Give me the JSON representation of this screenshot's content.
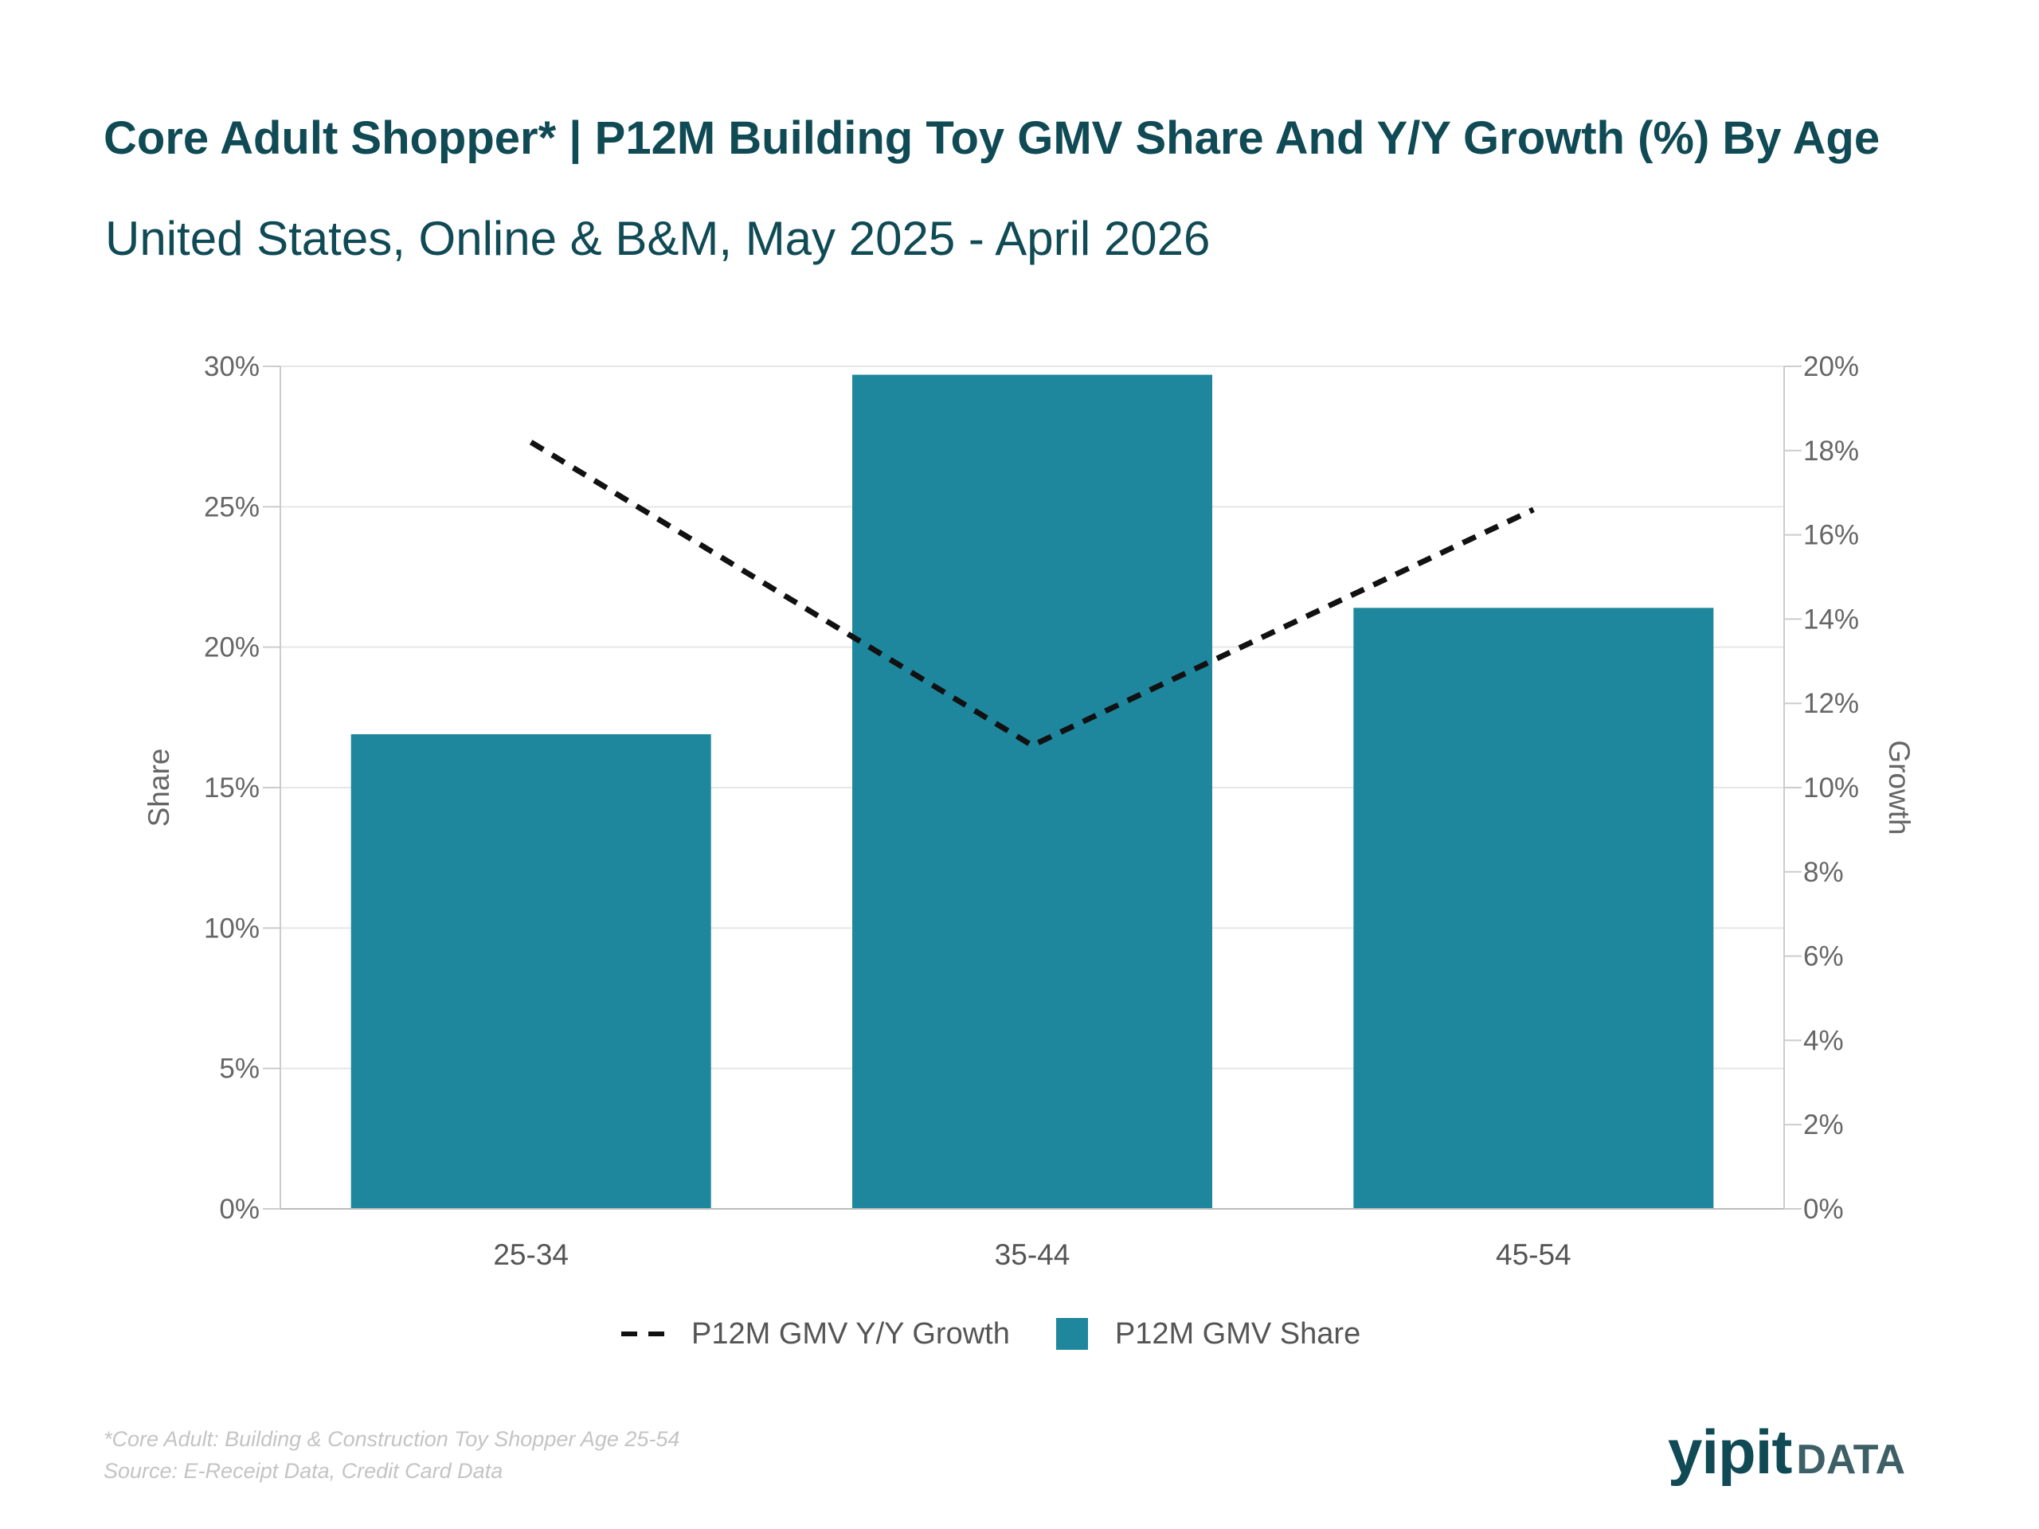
{
  "header": {
    "title": "Core Adult Shopper* | P12M Building Toy GMV Share And  Y/Y Growth (%) By Age",
    "subtitle": "United States, Online & B&M, May 2025 - April 2026"
  },
  "chart_data": {
    "type": "bar",
    "categories": [
      "25-34",
      "35-44",
      "45-54"
    ],
    "series": [
      {
        "name": "P12M GMV Share",
        "type": "bar",
        "axis": "left",
        "values": [
          16.9,
          29.7,
          21.4
        ],
        "color": "#1e879e"
      },
      {
        "name": "P12M GMV Y/Y Growth",
        "type": "line",
        "style": "dashed",
        "axis": "right",
        "values": [
          18.2,
          11.0,
          16.6
        ],
        "color": "#111111"
      }
    ],
    "y_left": {
      "label": "Share",
      "ylim": [
        0,
        30
      ],
      "ticks": [
        0,
        5,
        10,
        15,
        20,
        25,
        30
      ],
      "tick_labels": [
        "0%",
        "5%",
        "10%",
        "15%",
        "20%",
        "25%",
        "30%"
      ]
    },
    "y_right": {
      "label": "Growth",
      "ylim": [
        0,
        20
      ],
      "ticks": [
        0,
        2,
        4,
        6,
        8,
        10,
        12,
        14,
        16,
        18,
        20
      ],
      "tick_labels": [
        "0%",
        "2%",
        "4%",
        "6%",
        "8%",
        "10%",
        "12%",
        "14%",
        "16%",
        "18%",
        "20%"
      ]
    },
    "grid": true,
    "legend_position": "bottom-center"
  },
  "legend": {
    "growth_label": "P12M GMV Y/Y Growth",
    "share_label": "P12M GMV Share"
  },
  "footnote": {
    "line1": "*Core Adult: Building & Construction Toy Shopper Age 25-54",
    "line2": "Source: E-Receipt Data, Credit Card Data"
  },
  "logo": {
    "main": "yipit",
    "sub": "DATA"
  }
}
